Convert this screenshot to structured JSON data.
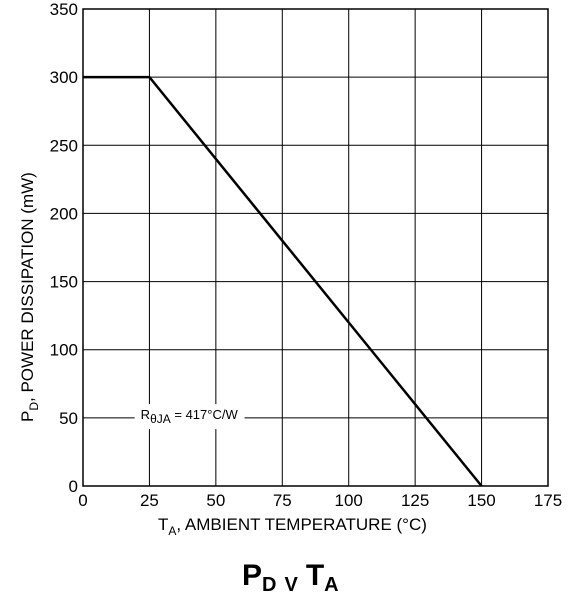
{
  "chart_data": {
    "type": "line",
    "title": "",
    "caption": {
      "main_1": "P",
      "sub_1": "D",
      "mid": "V",
      "main_2": "T",
      "sub_2": "A"
    },
    "xlabel": {
      "main": "T",
      "sub": "A",
      "rest": ", AMBIENT TEMPERATURE (°C)"
    },
    "ylabel": {
      "main": "P",
      "sub": "D",
      "rest": ", POWER DISSIPATION (mW)"
    },
    "xlim": [
      0,
      175
    ],
    "ylim": [
      0,
      350
    ],
    "xticks": [
      0,
      25,
      50,
      75,
      100,
      125,
      150,
      175
    ],
    "yticks": [
      0,
      50,
      100,
      150,
      200,
      250,
      300,
      350
    ],
    "grid": true,
    "legend": "none",
    "series": [
      {
        "x": [
          0,
          25,
          150
        ],
        "y": [
          300,
          300,
          0
        ],
        "color": "#000000"
      }
    ],
    "annotations": [
      {
        "main": "R",
        "sub": "θJA",
        "rest": " = 417°C/W",
        "x": 33,
        "y": 52
      }
    ]
  }
}
